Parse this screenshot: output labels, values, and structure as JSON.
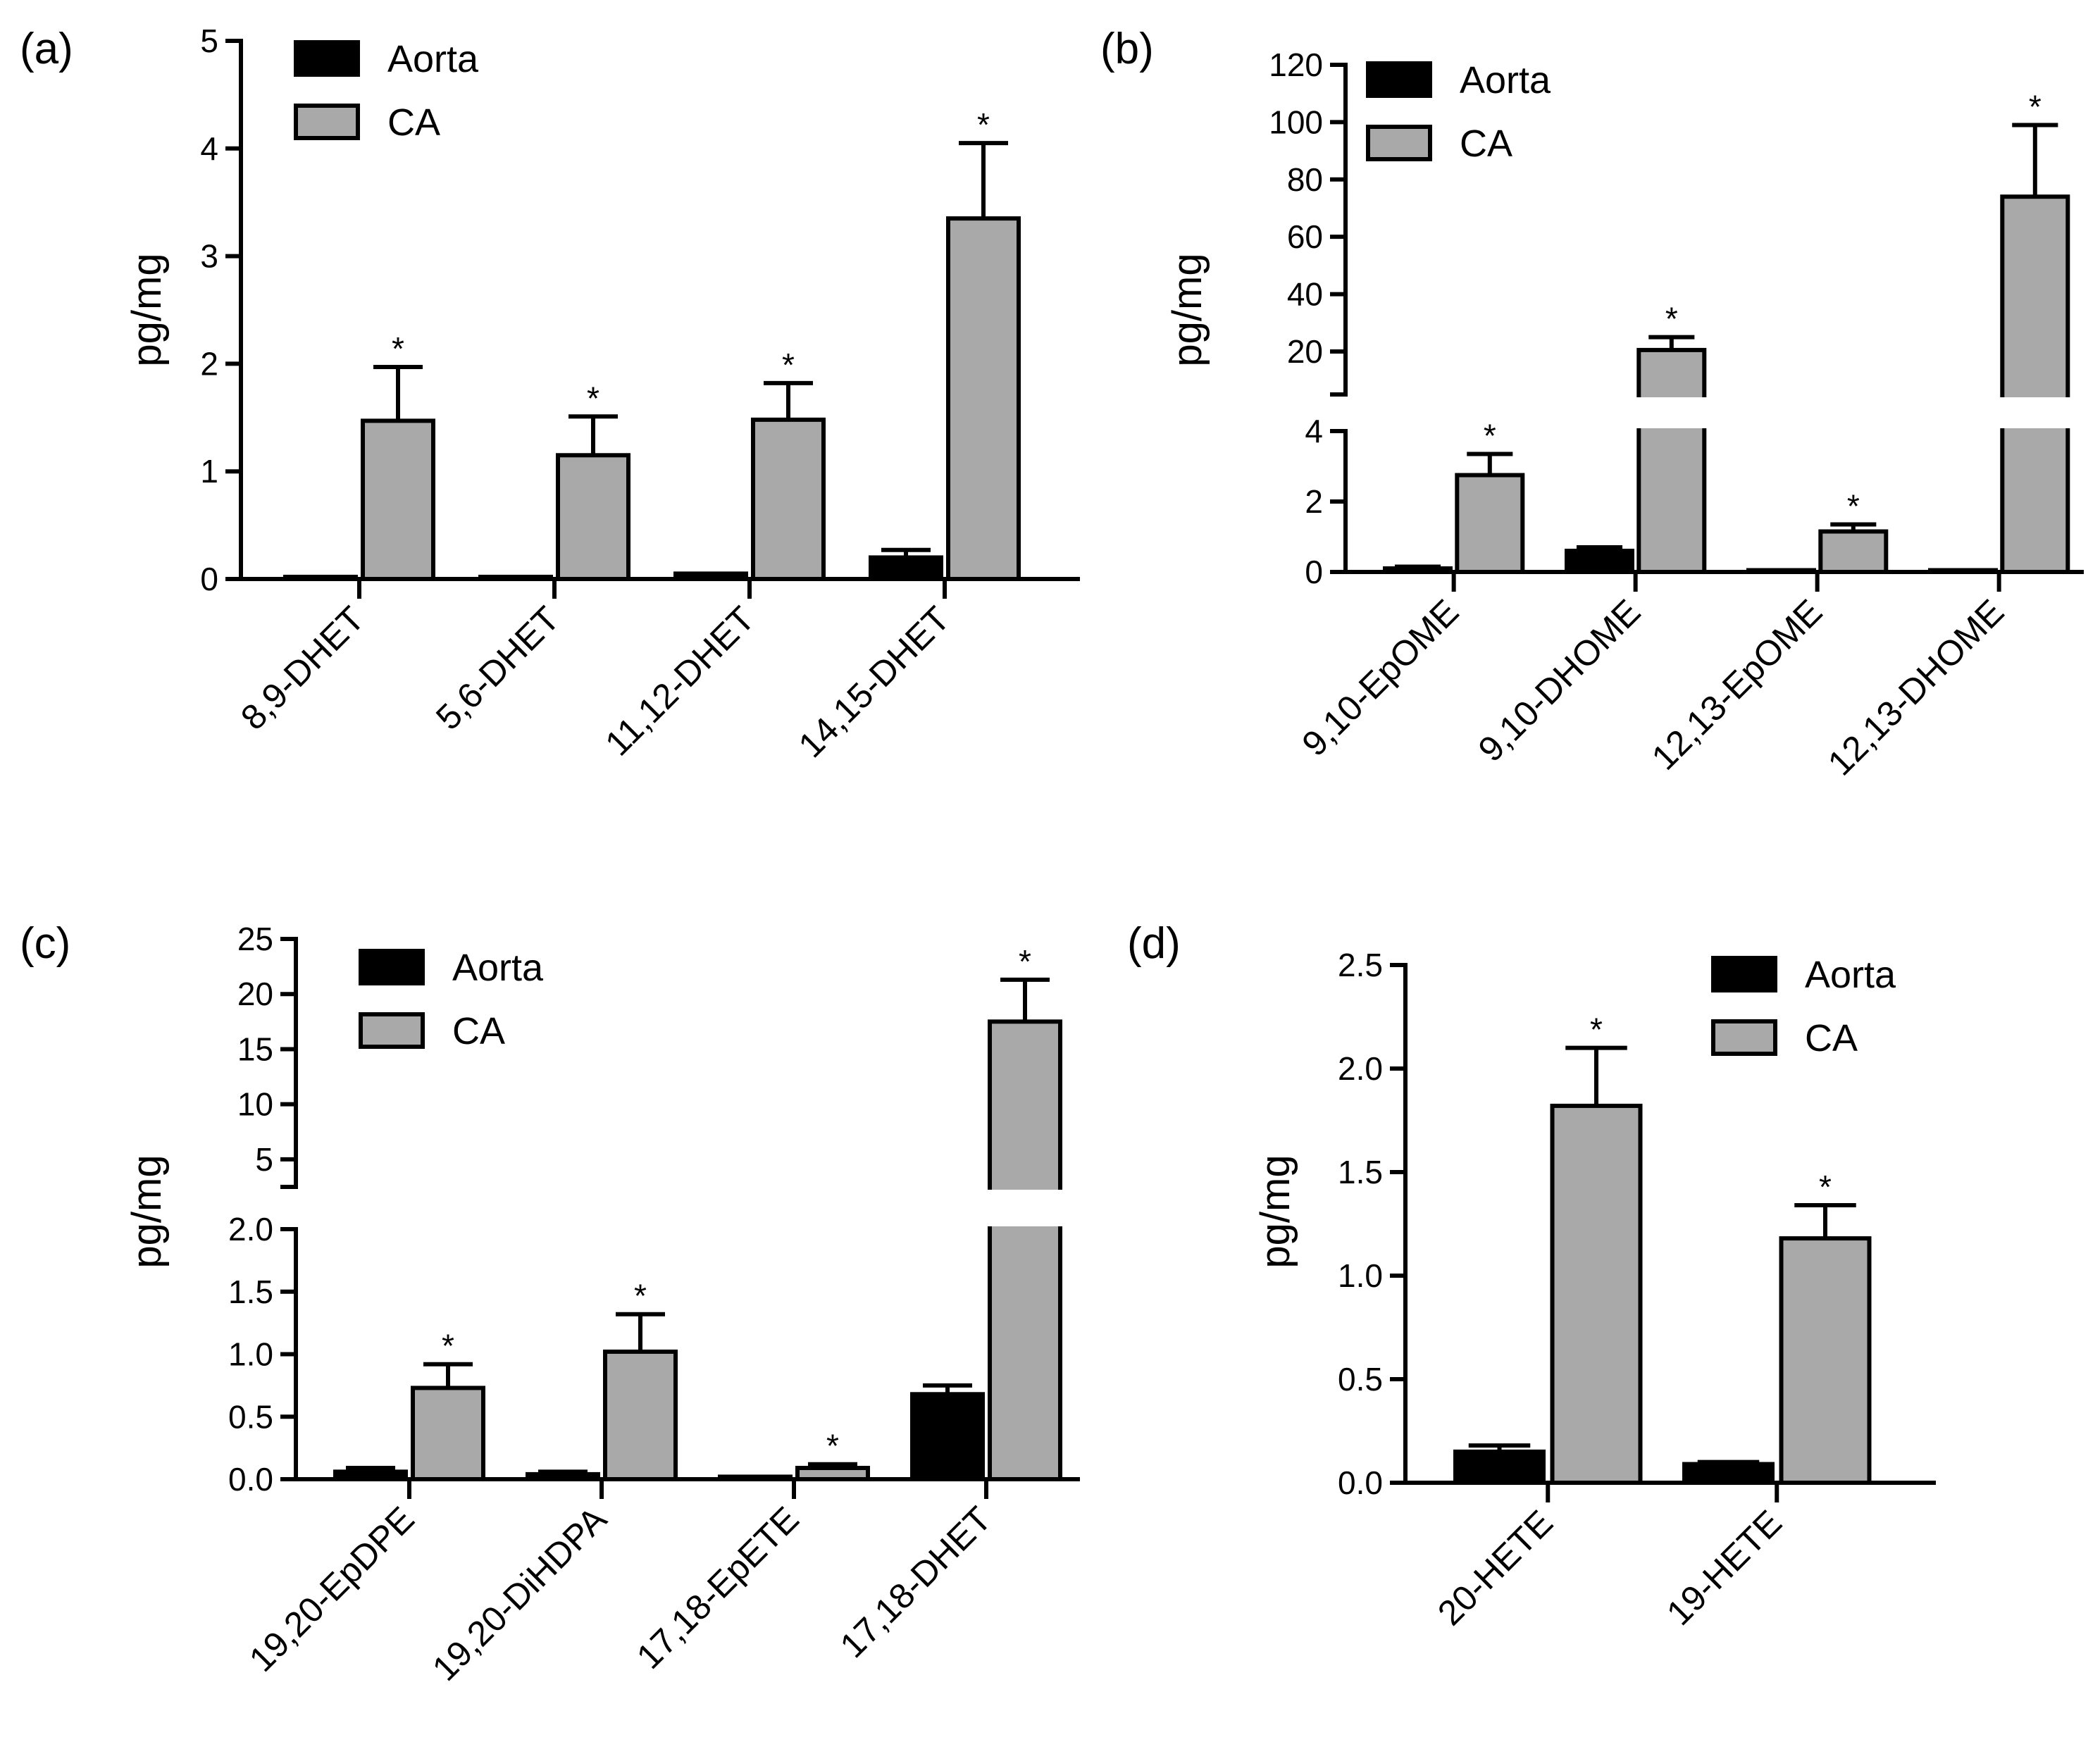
{
  "colors": {
    "aorta": "#000000",
    "ca": "#a9a9a9",
    "axis": "#000000"
  },
  "legend": [
    "Aorta",
    "CA"
  ],
  "significance_marker": "*",
  "chart_data": [
    {
      "id": "a",
      "panel_label": "(a)",
      "type": "bar",
      "ylabel": "pg/mg",
      "ylim": [
        0,
        5
      ],
      "yticks": [
        "0",
        "1",
        "2",
        "3",
        "4",
        "5"
      ],
      "categories": [
        "8,9-DHET",
        "5,6-DHET",
        "11,12-DHET",
        "14,15-DHET"
      ],
      "series": [
        {
          "name": "Aorta",
          "values": [
            0.02,
            0.02,
            0.05,
            0.2
          ],
          "errors": [
            0.0,
            0.0,
            0.0,
            0.07
          ]
        },
        {
          "name": "CA",
          "values": [
            1.47,
            1.15,
            1.48,
            3.35
          ],
          "errors": [
            0.5,
            0.36,
            0.34,
            0.7
          ]
        }
      ],
      "significant": [
        true,
        true,
        true,
        true
      ]
    },
    {
      "id": "b",
      "panel_label": "(b)",
      "type": "bar",
      "ylabel": "pg/mg",
      "broken_axis": {
        "lower": [
          0,
          4
        ],
        "upper": [
          5,
          120
        ]
      },
      "yticks_lower": [
        "0",
        "2",
        "4"
      ],
      "yticks_upper": [
        "20",
        "40",
        "60",
        "80",
        "100",
        "120"
      ],
      "categories": [
        "9,10-EpOME",
        "9,10-DHOME",
        "12,13-EpOME",
        "12,13-DHOME"
      ],
      "series": [
        {
          "name": "Aorta",
          "values": [
            0.1,
            0.6,
            0.05,
            0.05
          ],
          "errors": [
            0.05,
            0.1,
            0.0,
            0.0
          ]
        },
        {
          "name": "CA",
          "values": [
            2.75,
            20.5,
            1.15,
            74
          ],
          "errors": [
            0.6,
            4.5,
            0.2,
            25
          ]
        }
      ],
      "significant": [
        true,
        true,
        true,
        true
      ]
    },
    {
      "id": "c",
      "panel_label": "(c)",
      "type": "bar",
      "ylabel": "pg/mg",
      "broken_axis": {
        "lower": [
          0,
          2
        ],
        "upper": [
          2.5,
          25
        ]
      },
      "yticks_lower": [
        "0.0",
        "0.5",
        "1.0",
        "1.5",
        "2.0"
      ],
      "yticks_upper": [
        "5",
        "10",
        "15",
        "20",
        "25"
      ],
      "categories": [
        "19,20-EpDPE",
        "19,20-DiHDPA",
        "17,18-EpETE",
        "17,18-DHET"
      ],
      "series": [
        {
          "name": "Aorta",
          "values": [
            0.06,
            0.04,
            0.02,
            0.68
          ],
          "errors": [
            0.03,
            0.02,
            0.0,
            0.07
          ]
        },
        {
          "name": "CA",
          "values": [
            0.73,
            1.02,
            0.09,
            17.5
          ],
          "errors": [
            0.19,
            0.3,
            0.03,
            3.8
          ]
        }
      ],
      "significant": [
        true,
        true,
        true,
        true
      ]
    },
    {
      "id": "d",
      "panel_label": "(d)",
      "type": "bar",
      "ylabel": "pg/mg",
      "ylim": [
        0,
        2.5
      ],
      "yticks": [
        "0.0",
        "0.5",
        "1.0",
        "1.5",
        "2.0",
        "2.5"
      ],
      "categories": [
        "20-HETE",
        "19-HETE"
      ],
      "series": [
        {
          "name": "Aorta",
          "values": [
            0.15,
            0.09
          ],
          "errors": [
            0.03,
            0.01
          ]
        },
        {
          "name": "CA",
          "values": [
            1.82,
            1.18
          ],
          "errors": [
            0.28,
            0.16
          ]
        }
      ],
      "significant": [
        true,
        true
      ]
    }
  ]
}
